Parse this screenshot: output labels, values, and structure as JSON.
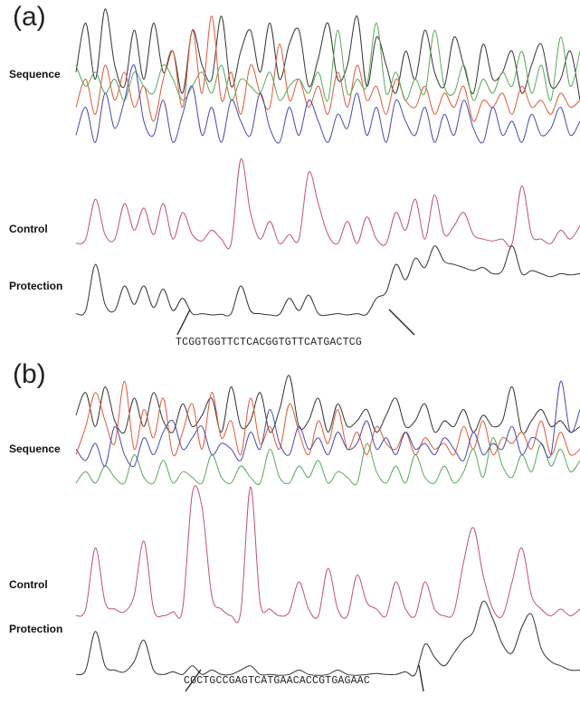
{
  "chart_data": [
    {
      "type": "line",
      "panel_label": "(a)",
      "row_labels": {
        "sequence": "Sequence",
        "control": "Control",
        "protection": "Protection"
      },
      "footprint_sequence": "TCGGTGGTTCTCACGGTGTTCATGACTCG",
      "series": [
        {
          "name": "Sequence trace (black)",
          "color": "#333333",
          "row": "sequence",
          "values": [
            0.55,
            0.9,
            0.5,
            1.0,
            0.6,
            0.45,
            0.85,
            0.5,
            0.9,
            0.55,
            0.7,
            0.4,
            0.85,
            0.6,
            0.5,
            0.95,
            0.45,
            0.7,
            0.85,
            0.55,
            0.9,
            0.5,
            0.75,
            0.85,
            0.45,
            0.65,
            0.9,
            0.5,
            0.6,
            0.95,
            0.45,
            0.8,
            0.6,
            0.4,
            0.7,
            0.5,
            0.85,
            0.55,
            0.45,
            0.8,
            0.6,
            0.4,
            0.75,
            0.5,
            0.55,
            0.7,
            0.4,
            0.6,
            0.75,
            0.45,
            0.5,
            0.7,
            0.35
          ]
        },
        {
          "name": "Sequence trace (red)",
          "color": "#e05a3a",
          "row": "sequence",
          "values": [
            0.3,
            0.5,
            0.25,
            0.6,
            0.35,
            0.55,
            0.3,
            0.45,
            0.2,
            0.5,
            0.7,
            0.3,
            0.85,
            0.4,
            0.95,
            0.35,
            0.55,
            0.25,
            0.6,
            0.4,
            0.3,
            0.75,
            0.35,
            0.5,
            0.3,
            0.45,
            0.25,
            0.55,
            0.3,
            0.6,
            0.35,
            0.45,
            0.25,
            0.5,
            0.35,
            0.3,
            0.45,
            0.25,
            0.4,
            0.3,
            0.45,
            0.2,
            0.35,
            0.3,
            0.4,
            0.25,
            0.45,
            0.3,
            0.35,
            0.25,
            0.4,
            0.3,
            0.35
          ]
        },
        {
          "name": "Sequence trace (green)",
          "color": "#5aa85a",
          "row": "sequence",
          "values": [
            0.6,
            0.45,
            0.55,
            0.4,
            0.5,
            0.35,
            0.55,
            0.45,
            0.4,
            0.6,
            0.5,
            0.35,
            0.45,
            0.55,
            0.4,
            0.6,
            0.35,
            0.5,
            0.45,
            0.4,
            0.55,
            0.35,
            0.45,
            0.5,
            0.4,
            0.55,
            0.35,
            0.85,
            0.4,
            0.5,
            0.45,
            0.9,
            0.4,
            0.55,
            0.35,
            0.5,
            0.4,
            0.85,
            0.45,
            0.4,
            0.6,
            0.35,
            0.5,
            0.4,
            0.55,
            0.45,
            0.7,
            0.4,
            0.6,
            0.35,
            0.8,
            0.45,
            0.7
          ]
        },
        {
          "name": "Sequence trace (blue)",
          "color": "#4a4ab0",
          "row": "sequence",
          "values": [
            0.1,
            0.3,
            0.05,
            0.4,
            0.15,
            0.35,
            0.6,
            0.2,
            0.1,
            0.35,
            0.05,
            0.25,
            0.45,
            0.1,
            0.3,
            0.05,
            0.35,
            0.2,
            0.1,
            0.4,
            0.15,
            0.05,
            0.3,
            0.1,
            0.35,
            0.2,
            0.05,
            0.25,
            0.15,
            0.4,
            0.1,
            0.3,
            0.05,
            0.35,
            0.2,
            0.1,
            0.3,
            0.05,
            0.25,
            0.1,
            0.35,
            0.15,
            0.05,
            0.3,
            0.1,
            0.2,
            0.05,
            0.25,
            0.1,
            0.15,
            0.3,
            0.1,
            0.2
          ]
        },
        {
          "name": "Control",
          "color": "#c0507a",
          "row": "control",
          "values": [
            0.05,
            0.1,
            0.55,
            0.15,
            0.1,
            0.5,
            0.2,
            0.45,
            0.15,
            0.5,
            0.1,
            0.4,
            0.15,
            0.08,
            0.2,
            0.1,
            0.05,
            1.0,
            0.4,
            0.1,
            0.3,
            0.05,
            0.15,
            0.1,
            0.85,
            0.5,
            0.15,
            0.05,
            0.3,
            0.05,
            0.35,
            0.1,
            0.05,
            0.4,
            0.2,
            0.55,
            0.1,
            0.6,
            0.15,
            0.25,
            0.4,
            0.15,
            0.1,
            0.08,
            0.1,
            0.05,
            0.7,
            0.15,
            0.1,
            0.05,
            0.2,
            0.1,
            0.25
          ]
        },
        {
          "name": "Protection",
          "color": "#333333",
          "row": "protection",
          "values": [
            0.05,
            0.1,
            0.85,
            0.2,
            0.1,
            0.5,
            0.2,
            0.5,
            0.15,
            0.45,
            0.1,
            0.3,
            0.05,
            0.05,
            0.03,
            0.04,
            0.05,
            0.5,
            0.1,
            0.05,
            0.03,
            0.04,
            0.3,
            0.1,
            0.35,
            0.05,
            0.03,
            0.05,
            0.03,
            0.05,
            0.04,
            0.3,
            0.4,
            0.85,
            0.6,
            0.95,
            0.8,
            1.15,
            0.9,
            0.85,
            0.8,
            0.75,
            0.8,
            0.7,
            0.75,
            1.15,
            0.7,
            0.75,
            0.7,
            0.65,
            0.7,
            0.68,
            0.7
          ]
        }
      ]
    },
    {
      "type": "line",
      "panel_label": "(b)",
      "row_labels": {
        "sequence": "Sequence",
        "control": "Control",
        "protection": "Protection"
      },
      "footprint_sequence": "CGCTGCCGAGTCATGAACACCGTGAGAAC",
      "series": [
        {
          "name": "Sequence trace (black)",
          "color": "#333333",
          "row": "sequence",
          "values": [
            0.65,
            0.85,
            0.55,
            0.9,
            0.6,
            0.5,
            0.8,
            0.55,
            0.85,
            0.6,
            0.5,
            0.75,
            0.55,
            0.65,
            0.8,
            0.5,
            0.9,
            0.55,
            0.6,
            0.85,
            0.5,
            0.7,
            1.0,
            0.55,
            0.6,
            0.8,
            0.5,
            0.75,
            0.55,
            0.6,
            0.7,
            0.5,
            0.65,
            0.8,
            0.55,
            0.6,
            0.75,
            0.5,
            0.6,
            0.55,
            0.7,
            0.5,
            0.65,
            0.55,
            0.6,
            0.9,
            0.5,
            0.6,
            0.7,
            0.55,
            0.6,
            0.5,
            0.55
          ]
        },
        {
          "name": "Sequence trace (red)",
          "color": "#e05a3a",
          "row": "sequence",
          "values": [
            0.3,
            0.55,
            0.85,
            0.6,
            0.4,
            0.95,
            0.35,
            0.7,
            0.45,
            0.8,
            0.3,
            0.5,
            0.75,
            0.35,
            0.85,
            0.45,
            0.6,
            0.3,
            0.8,
            0.4,
            0.55,
            0.35,
            0.75,
            0.5,
            0.3,
            0.6,
            0.4,
            0.7,
            0.35,
            0.5,
            0.3,
            0.55,
            0.4,
            0.35,
            0.5,
            0.3,
            0.45,
            0.35,
            0.4,
            0.3,
            0.55,
            0.35,
            0.6,
            0.3,
            0.45,
            0.4,
            0.5,
            0.35,
            0.6,
            0.3,
            0.5,
            0.3,
            0.35
          ]
        },
        {
          "name": "Sequence trace (green)",
          "color": "#5aa85a",
          "row": "sequence",
          "values": [
            0.05,
            0.15,
            0.05,
            0.2,
            0.1,
            0.05,
            0.3,
            0.1,
            0.05,
            0.25,
            0.05,
            0.15,
            0.1,
            0.05,
            0.3,
            0.1,
            0.05,
            0.2,
            0.1,
            0.05,
            0.35,
            0.1,
            0.05,
            0.2,
            0.1,
            0.25,
            0.05,
            0.15,
            0.1,
            0.05,
            0.4,
            0.15,
            0.05,
            0.2,
            0.05,
            0.3,
            0.1,
            0.05,
            0.2,
            0.05,
            0.15,
            0.35,
            0.1,
            0.45,
            0.2,
            0.1,
            0.3,
            0.15,
            0.4,
            0.2,
            0.35,
            0.15,
            0.25
          ]
        },
        {
          "name": "Sequence trace (blue)",
          "color": "#4a4ab0",
          "row": "sequence",
          "values": [
            0.35,
            0.25,
            0.4,
            0.2,
            0.55,
            0.3,
            0.2,
            0.45,
            0.3,
            0.5,
            0.6,
            0.35,
            0.45,
            0.55,
            0.3,
            0.4,
            0.35,
            0.25,
            0.5,
            0.35,
            0.7,
            0.4,
            0.3,
            0.55,
            0.35,
            0.45,
            0.3,
            0.5,
            0.35,
            0.4,
            0.6,
            0.35,
            0.45,
            0.3,
            0.5,
            0.35,
            0.4,
            0.3,
            0.45,
            0.35,
            0.25,
            0.5,
            0.3,
            0.4,
            0.35,
            0.55,
            0.3,
            0.45,
            0.4,
            0.3,
            0.95,
            0.5,
            0.7
          ]
        },
        {
          "name": "Control",
          "color": "#c0507a",
          "row": "control",
          "values": [
            0.05,
            0.1,
            0.55,
            0.15,
            0.1,
            0.08,
            0.2,
            0.6,
            0.1,
            0.05,
            0.08,
            0.1,
            0.95,
            0.85,
            0.2,
            0.1,
            0.05,
            0.08,
            1.0,
            0.15,
            0.1,
            0.05,
            0.08,
            0.3,
            0.1,
            0.05,
            0.4,
            0.1,
            0.05,
            0.35,
            0.15,
            0.1,
            0.05,
            0.3,
            0.1,
            0.05,
            0.3,
            0.1,
            0.05,
            0.08,
            0.45,
            0.7,
            0.35,
            0.1,
            0.05,
            0.3,
            0.55,
            0.2,
            0.1,
            0.05,
            0.1,
            0.05,
            0.1
          ]
        },
        {
          "name": "Protection",
          "color": "#333333",
          "row": "protection",
          "values": [
            0.05,
            0.1,
            0.55,
            0.15,
            0.1,
            0.08,
            0.2,
            0.45,
            0.1,
            0.05,
            0.08,
            0.05,
            0.15,
            0.05,
            0.1,
            0.05,
            0.05,
            0.1,
            0.15,
            0.05,
            0.05,
            0.04,
            0.05,
            0.1,
            0.05,
            0.04,
            0.05,
            0.1,
            0.05,
            0.04,
            0.05,
            0.06,
            0.05,
            0.05,
            0.08,
            0.05,
            0.4,
            0.25,
            0.15,
            0.3,
            0.45,
            0.55,
            0.9,
            0.7,
            0.4,
            0.3,
            0.6,
            0.75,
            0.35,
            0.2,
            0.15,
            0.1,
            0.1
          ]
        }
      ]
    }
  ]
}
